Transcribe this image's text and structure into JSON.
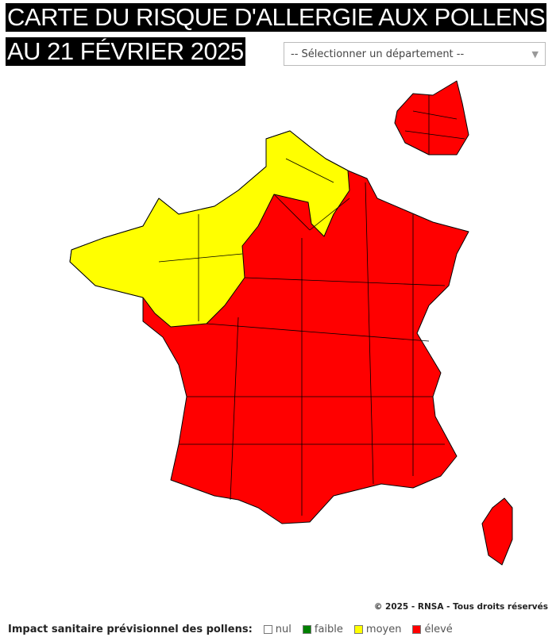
{
  "header": {
    "title_line1": "CARTE DU RISQUE D'ALLERGIE AUX POLLENS",
    "title_line2": "AU 21 FÉVRIER 2025"
  },
  "department_select": {
    "selected": "-- Sélectionner un département --",
    "icon": "triangle-down-icon"
  },
  "map": {
    "regions": [
      {
        "area": "nord-ouest",
        "level": "moyen",
        "color": "#ffff00"
      },
      {
        "area": "reste de la France, Corse, Île-de-France",
        "level": "élevé",
        "color": "#ff0000"
      }
    ]
  },
  "footer": {
    "copyright": "© 2025 - RNSA - Tous droits réservés"
  },
  "legend": {
    "label": "Impact sanitaire prévisionnel des pollens:",
    "items": [
      {
        "label": "nul",
        "color": "#ffffff"
      },
      {
        "label": "faible",
        "color": "#008000"
      },
      {
        "label": "moyen",
        "color": "#ffff00"
      },
      {
        "label": "élevé",
        "color": "#ff0000"
      }
    ]
  }
}
